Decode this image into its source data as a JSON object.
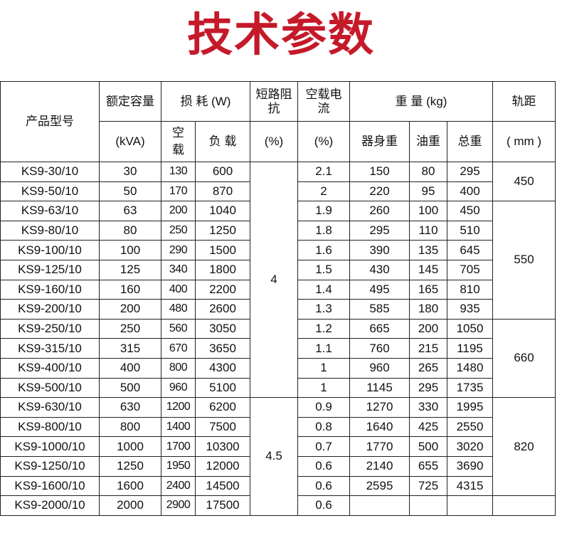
{
  "title": "技术参数",
  "colors": {
    "title": "#c41a2a",
    "border": "#222222"
  },
  "header": {
    "model": "产品型号",
    "capacity": "额定容量",
    "capacity_unit": "(kVA)",
    "loss": "损 耗 (W)",
    "loss_noload": "空\n载",
    "loss_load": "负 载",
    "impedance": "短路阻\n抗",
    "impedance_unit": "(%)",
    "noload_current": "空载电\n流",
    "noload_current_unit": "(%)",
    "weight": "重 量 (kg)",
    "weight_body": "器身重",
    "weight_oil": "油重",
    "weight_total": "总重",
    "gauge": "轨距",
    "gauge_unit": "( mm )"
  },
  "rows": [
    [
      "KS9-30/10",
      "30",
      "130",
      "600",
      "2.1",
      "150",
      "80",
      "295"
    ],
    [
      "KS9-50/10",
      "50",
      "170",
      "870",
      "2",
      "220",
      "95",
      "400"
    ],
    [
      "KS9-63/10",
      "63",
      "200",
      "1040",
      "1.9",
      "260",
      "100",
      "450"
    ],
    [
      "KS9-80/10",
      "80",
      "250",
      "1250",
      "1.8",
      "295",
      "110",
      "510"
    ],
    [
      "KS9-100/10",
      "100",
      "290",
      "1500",
      "1.6",
      "390",
      "135",
      "645"
    ],
    [
      "KS9-125/10",
      "125",
      "340",
      "1800",
      "1.5",
      "430",
      "145",
      "705"
    ],
    [
      "KS9-160/10",
      "160",
      "400",
      "2200",
      "1.4",
      "495",
      "165",
      "810"
    ],
    [
      "KS9-200/10",
      "200",
      "480",
      "2600",
      "1.3",
      "585",
      "180",
      "935"
    ],
    [
      "KS9-250/10",
      "250",
      "560",
      "3050",
      "1.2",
      "665",
      "200",
      "1050"
    ],
    [
      "KS9-315/10",
      "315",
      "670",
      "3650",
      "1.1",
      "760",
      "215",
      "1195"
    ],
    [
      "KS9-400/10",
      "400",
      "800",
      "4300",
      "1",
      "960",
      "265",
      "1480"
    ],
    [
      "KS9-500/10",
      "500",
      "960",
      "5100",
      "1",
      "1145",
      "295",
      "1735"
    ],
    [
      "KS9-630/10",
      "630",
      "1200",
      "6200",
      "0.9",
      "1270",
      "330",
      "1995"
    ],
    [
      "KS9-800/10",
      "800",
      "1400",
      "7500",
      "0.8",
      "1640",
      "425",
      "2550"
    ],
    [
      "KS9-1000/10",
      "1000",
      "1700",
      "10300",
      "0.7",
      "1770",
      "500",
      "3020"
    ],
    [
      "KS9-1250/10",
      "1250",
      "1950",
      "12000",
      "0.6",
      "2140",
      "655",
      "3690"
    ],
    [
      "KS9-1600/10",
      "1600",
      "2400",
      "14500",
      "0.6",
      "2595",
      "725",
      "4315"
    ],
    [
      "KS9-2000/10",
      "2000",
      "2900",
      "17500",
      "0.6",
      "",
      "",
      ""
    ]
  ],
  "impedance_groups": [
    {
      "value": "4",
      "rows": 12
    },
    {
      "value": "4.5",
      "rows": 6
    }
  ],
  "gauge_groups": [
    {
      "value": "450",
      "rows": 2
    },
    {
      "value": "550",
      "rows": 6
    },
    {
      "value": "660",
      "rows": 4
    },
    {
      "value": "820",
      "rows": 5
    },
    {
      "value": "",
      "rows": 1
    }
  ]
}
